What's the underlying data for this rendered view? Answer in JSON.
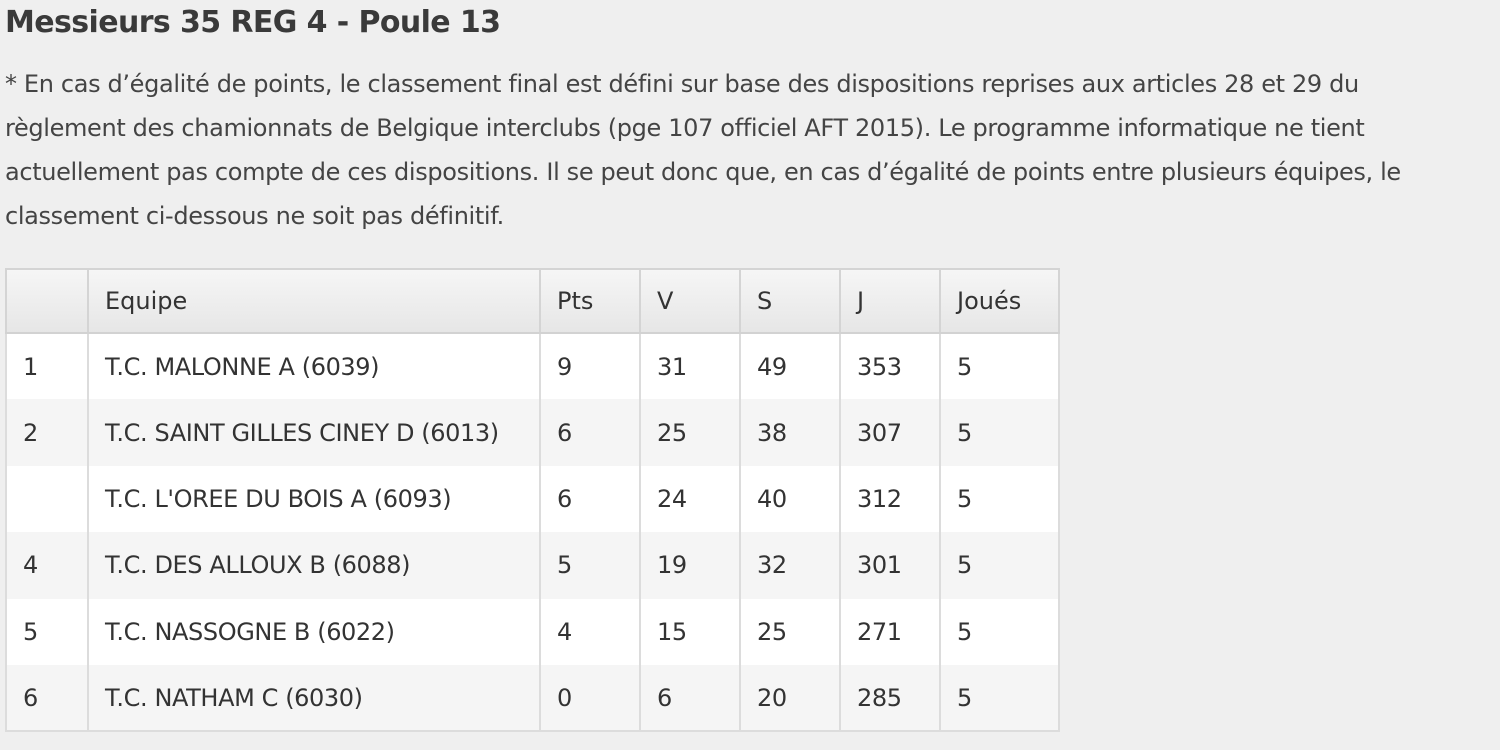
{
  "title": "Messieurs 35 REG 4 - Poule 13",
  "disclaimer": {
    "lines": [
      "* En cas d’égalité de points, le classement final est défini sur base des dispositions reprises aux articles 28 et 29 du",
      "règlement des chamionnats de Belgique interclubs (pge 107 officiel AFT 2015). Le programme informatique ne tient",
      "actuellement pas compte de ces dispositions. Il se peut donc que, en cas d’égalité de points entre plusieurs équipes, le",
      "classement ci-dessous ne soit pas définitif."
    ]
  },
  "table": {
    "headers": {
      "rank": "",
      "team": "Equipe",
      "pts": "Pts",
      "v": "V",
      "s": "S",
      "j": "J",
      "played": "Joués"
    },
    "rows": [
      {
        "rank": "1",
        "team": "T.C. MALONNE A (6039)",
        "pts": "9",
        "v": "31",
        "s": "49",
        "j": "353",
        "played": "5"
      },
      {
        "rank": "2",
        "team": "T.C. SAINT GILLES CINEY D (6013)",
        "pts": "6",
        "v": "25",
        "s": "38",
        "j": "307",
        "played": "5"
      },
      {
        "rank": "",
        "team": "T.C. L'OREE DU BOIS A (6093)",
        "pts": "6",
        "v": "24",
        "s": "40",
        "j": "312",
        "played": "5"
      },
      {
        "rank": "4",
        "team": "T.C. DES ALLOUX B (6088)",
        "pts": "5",
        "v": "19",
        "s": "32",
        "j": "301",
        "played": "5"
      },
      {
        "rank": "5",
        "team": "T.C. NASSOGNE B (6022)",
        "pts": "4",
        "v": "15",
        "s": "25",
        "j": "271",
        "played": "5"
      },
      {
        "rank": "6",
        "team": "T.C. NATHAM C (6030)",
        "pts": "0",
        "v": "6",
        "s": "20",
        "j": "285",
        "played": "5"
      }
    ]
  }
}
